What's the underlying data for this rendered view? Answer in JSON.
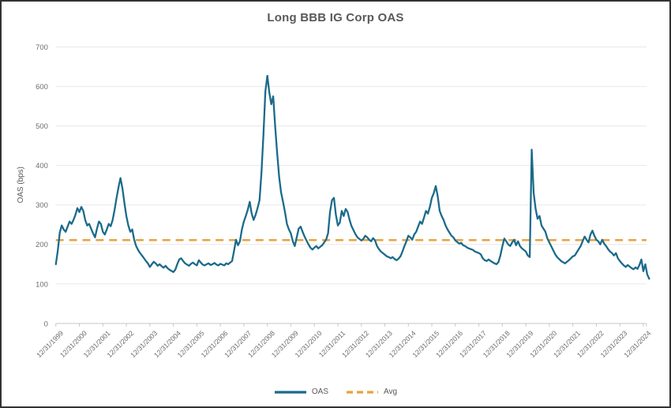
{
  "title": "Long BBB IG Corp OAS",
  "y_axis": {
    "label": "OAS (bps)",
    "ticks": [
      0,
      100,
      200,
      300,
      400,
      500,
      600,
      700
    ],
    "min": 0,
    "max": 700
  },
  "x_axis": {
    "labels": [
      "12/31/1999",
      "12/31/2000",
      "12/31/2001",
      "12/31/2002",
      "12/31/2003",
      "12/31/2004",
      "12/31/2005",
      "12/31/2006",
      "12/31/2007",
      "12/31/2008",
      "12/31/2009",
      "12/31/2010",
      "12/31/2011",
      "12/31/2012",
      "12/31/2013",
      "12/31/2014",
      "12/31/2015",
      "12/31/2016",
      "12/31/2017",
      "12/31/2018",
      "12/31/2019",
      "12/31/2020",
      "12/31/2021",
      "12/31/2022",
      "12/31/2023",
      "12/31/2024"
    ]
  },
  "legend": [
    {
      "label": "OAS",
      "color": "#1B6A8A",
      "style": "solid"
    },
    {
      "label": "Avg",
      "color": "#E8A33D",
      "style": "dashed"
    }
  ],
  "colors": {
    "series": "#1B6A8A",
    "avg": "#E8A33D",
    "gridline": "#E8E8E8",
    "axis": "#C6C6C6",
    "text": "#595959"
  },
  "chart_data": {
    "type": "line",
    "title": "Long BBB IG Corp OAS",
    "xlabel": "",
    "ylabel": "OAS (bps)",
    "ylim": [
      0,
      700
    ],
    "grid": "horizontal",
    "legend_position": "bottom-center",
    "x_start": "1999-12",
    "x_interval": "monthly",
    "x_tick_labels": [
      "12/31/1999",
      "12/31/2000",
      "12/31/2001",
      "12/31/2002",
      "12/31/2003",
      "12/31/2004",
      "12/31/2005",
      "12/31/2006",
      "12/31/2007",
      "12/31/2008",
      "12/31/2009",
      "12/31/2010",
      "12/31/2011",
      "12/31/2012",
      "12/31/2013",
      "12/31/2014",
      "12/31/2015",
      "12/31/2016",
      "12/31/2017",
      "12/31/2018",
      "12/31/2019",
      "12/31/2020",
      "12/31/2021",
      "12/31/2022",
      "12/31/2023",
      "12/31/2024"
    ],
    "series": [
      {
        "name": "OAS",
        "color": "#1B6A8A",
        "style": "solid",
        "values": [
          150,
          185,
          230,
          248,
          238,
          232,
          245,
          258,
          252,
          262,
          275,
          292,
          282,
          295,
          285,
          262,
          248,
          252,
          240,
          228,
          218,
          240,
          258,
          252,
          232,
          225,
          238,
          252,
          246,
          262,
          288,
          318,
          345,
          368,
          342,
          305,
          272,
          248,
          232,
          238,
          212,
          196,
          186,
          178,
          172,
          165,
          158,
          152,
          143,
          150,
          156,
          152,
          146,
          150,
          145,
          141,
          146,
          140,
          136,
          133,
          130,
          136,
          150,
          162,
          165,
          158,
          152,
          149,
          146,
          151,
          154,
          150,
          147,
          160,
          154,
          149,
          147,
          150,
          152,
          148,
          150,
          153,
          149,
          147,
          151,
          149,
          147,
          152,
          150,
          154,
          158,
          184,
          212,
          198,
          208,
          238,
          258,
          272,
          288,
          308,
          278,
          262,
          275,
          292,
          312,
          382,
          478,
          588,
          627,
          585,
          555,
          575,
          498,
          432,
          372,
          332,
          308,
          282,
          252,
          238,
          228,
          208,
          196,
          218,
          240,
          245,
          232,
          220,
          210,
          200,
          192,
          187,
          192,
          196,
          190,
          194,
          198,
          205,
          212,
          228,
          282,
          312,
          318,
          275,
          248,
          255,
          285,
          272,
          290,
          282,
          262,
          246,
          236,
          226,
          218,
          214,
          210,
          214,
          222,
          218,
          212,
          208,
          216,
          210,
          196,
          188,
          182,
          178,
          174,
          170,
          168,
          165,
          168,
          163,
          160,
          164,
          170,
          182,
          196,
          208,
          222,
          218,
          212,
          225,
          232,
          245,
          258,
          252,
          268,
          285,
          278,
          295,
          318,
          330,
          348,
          322,
          285,
          272,
          262,
          248,
          238,
          230,
          222,
          218,
          210,
          206,
          202,
          204,
          198,
          196,
          192,
          190,
          188,
          186,
          182,
          180,
          178,
          175,
          165,
          160,
          158,
          162,
          158,
          155,
          152,
          150,
          155,
          172,
          195,
          215,
          208,
          200,
          196,
          205,
          212,
          198,
          208,
          196,
          190,
          186,
          182,
          172,
          168,
          440,
          330,
          290,
          265,
          272,
          248,
          240,
          232,
          215,
          205,
          195,
          185,
          175,
          168,
          163,
          158,
          155,
          152,
          156,
          160,
          165,
          170,
          172,
          180,
          188,
          196,
          208,
          220,
          212,
          205,
          225,
          235,
          222,
          212,
          208,
          200,
          212,
          202,
          196,
          188,
          182,
          178,
          172,
          178,
          165,
          158,
          152,
          147,
          143,
          148,
          144,
          140,
          137,
          142,
          138,
          148,
          162,
          132,
          150,
          124,
          113
        ]
      },
      {
        "name": "Avg",
        "color": "#E8A33D",
        "style": "dashed",
        "value": 211
      }
    ]
  }
}
